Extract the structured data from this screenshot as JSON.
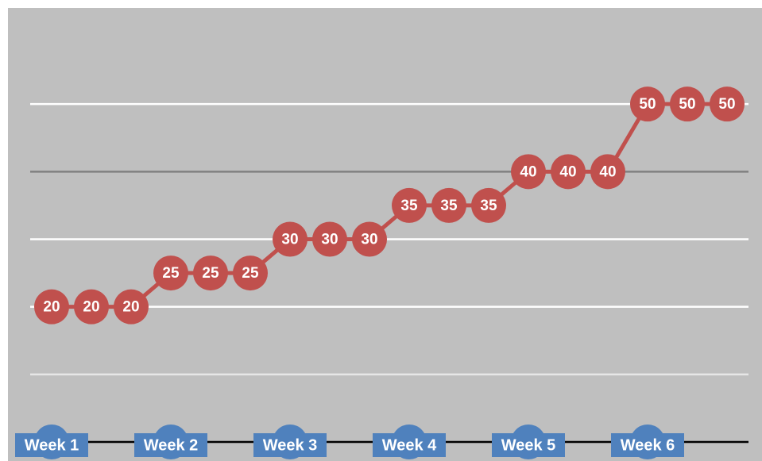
{
  "chart_data": {
    "type": "line",
    "categories": [
      "Week 1",
      null,
      null,
      "Week 2",
      null,
      null,
      "Week 3",
      null,
      null,
      "Week 4",
      null,
      null,
      "Week 5",
      null,
      null,
      "Week 6",
      null,
      null
    ],
    "series": [
      {
        "color": "#c0504d",
        "values": [
          20,
          20,
          20,
          25,
          25,
          25,
          30,
          30,
          30,
          35,
          35,
          35,
          40,
          40,
          40,
          50,
          50,
          50
        ]
      }
    ],
    "ylim": [
      0,
      60
    ],
    "yticks": [
      0,
      10,
      20,
      30,
      40,
      50
    ],
    "grid": true,
    "grid_colors": [
      "#000000",
      "#e6e6e6",
      "#ffffff",
      "#ffffff",
      "#808080",
      "#ffffff"
    ],
    "category_color": "#4f81bd"
  }
}
